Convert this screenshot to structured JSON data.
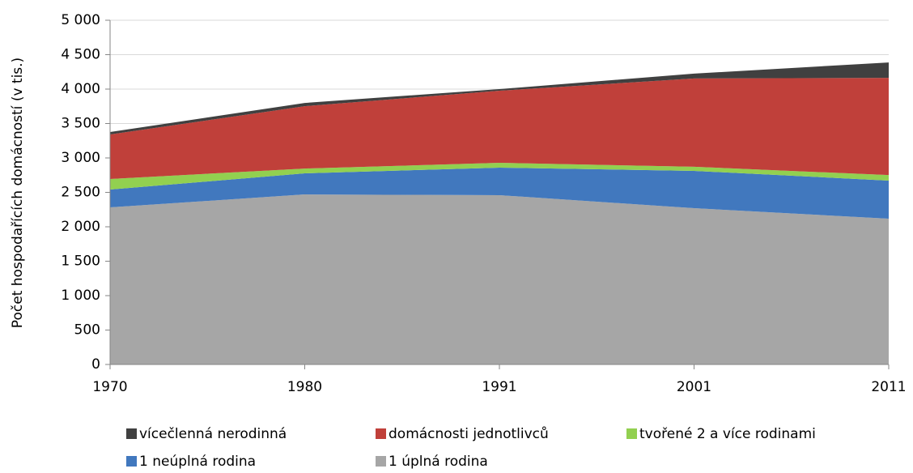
{
  "chart_data": {
    "type": "stacked_area",
    "y_label": "Počet hospodařících domácností (v tis.)",
    "categories": [
      "1970",
      "1980",
      "1991",
      "2001",
      "2011"
    ],
    "series": [
      {
        "name": "vícečlenná nerodinná",
        "color": "#404040",
        "values": [
          35,
          47,
          24,
          71,
          224
        ]
      },
      {
        "name": "domácnosti jednotlivců",
        "color": "#c0403a",
        "values": [
          647,
          906,
          1047,
          1282,
          1412
        ]
      },
      {
        "name": "tvořené 2 a více rodinami",
        "color": "#92d050",
        "values": [
          153,
          70,
          70,
          60,
          80
        ]
      },
      {
        "name": "1 neúplná rodina",
        "color": "#4178be",
        "values": [
          259,
          306,
          400,
          542,
          553
        ]
      },
      {
        "name": "1 úplná rodina",
        "color": "#a6a6a6",
        "values": [
          2282,
          2470,
          2459,
          2270,
          2118
        ]
      }
    ],
    "ylim": [
      0,
      5000
    ],
    "yticks": [
      0,
      500,
      {
        "value": 1000,
        "label": "1 000"
      },
      {
        "value": 1500,
        "label": "1 500"
      },
      {
        "value": 2000,
        "label": "2 000"
      },
      {
        "value": 2500,
        "label": "2 500"
      },
      {
        "value": 3000,
        "label": "3 000"
      },
      {
        "value": 3500,
        "label": "3 500"
      },
      {
        "value": 4000,
        "label": "4 000"
      },
      {
        "value": 4500,
        "label": "4 500"
      },
      {
        "value": 5000,
        "label": "5 000"
      }
    ],
    "grid": true,
    "legend": "bottom"
  }
}
